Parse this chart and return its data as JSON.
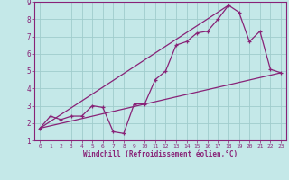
{
  "xlabel": "Windchill (Refroidissement éolien,°C)",
  "xlim": [
    -0.5,
    23.5
  ],
  "ylim": [
    1,
    9
  ],
  "xticks": [
    0,
    1,
    2,
    3,
    4,
    5,
    6,
    7,
    8,
    9,
    10,
    11,
    12,
    13,
    14,
    15,
    16,
    17,
    18,
    19,
    20,
    21,
    22,
    23
  ],
  "yticks": [
    1,
    2,
    3,
    4,
    5,
    6,
    7,
    8,
    9
  ],
  "background_color": "#c4e8e8",
  "grid_color": "#a0cccc",
  "line_color": "#882277",
  "line1_x": [
    0,
    1,
    2,
    3,
    4,
    5,
    6,
    7,
    8,
    9,
    10,
    11,
    12,
    13,
    14,
    15,
    16,
    17,
    18,
    19,
    20,
    21,
    22,
    23
  ],
  "line1_y": [
    1.7,
    2.4,
    2.2,
    2.4,
    2.4,
    3.0,
    2.9,
    1.5,
    1.4,
    3.1,
    3.1,
    4.5,
    5.0,
    6.5,
    6.7,
    7.2,
    7.3,
    8.0,
    8.8,
    8.4,
    6.7,
    7.3,
    5.1,
    4.9
  ],
  "line2_x": [
    0,
    23
  ],
  "line2_y": [
    1.7,
    4.9
  ],
  "line3_x": [
    0,
    18
  ],
  "line3_y": [
    1.7,
    8.8
  ],
  "marker": "+"
}
